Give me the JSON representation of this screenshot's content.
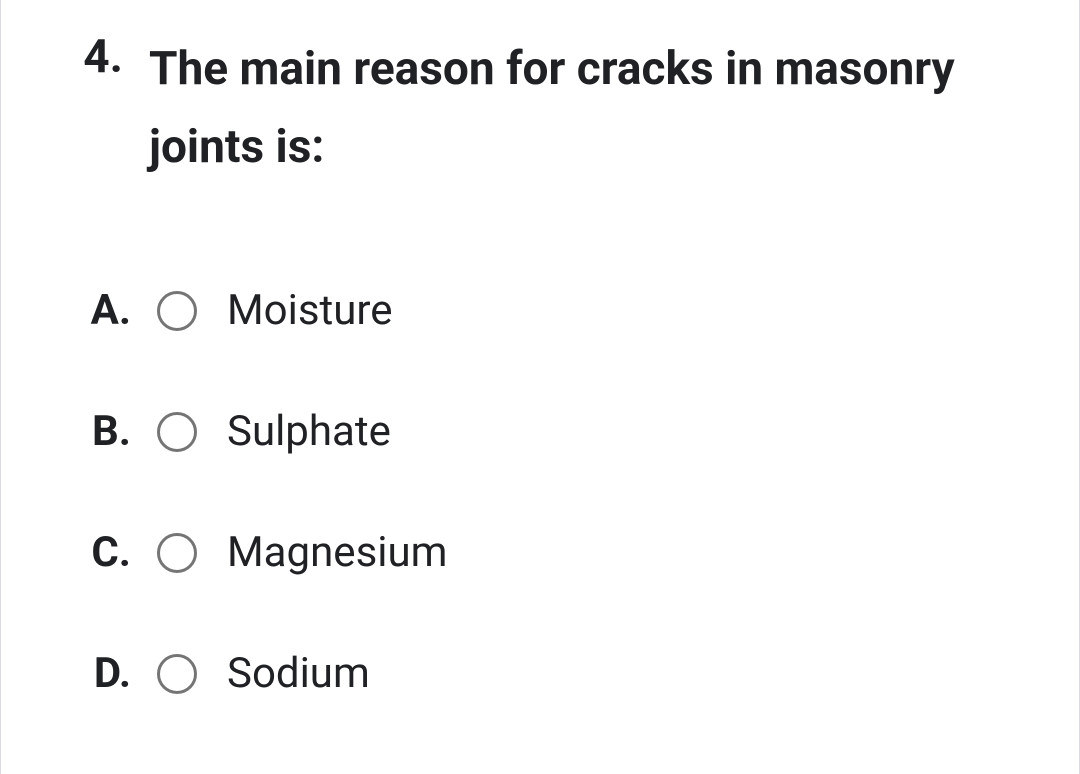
{
  "question": {
    "number": "4.",
    "text": "The main reason for cracks in masonry joints is:"
  },
  "options": [
    {
      "letter": "A.",
      "label": "Moisture"
    },
    {
      "letter": "B.",
      "label": "Sulphate"
    },
    {
      "letter": "C.",
      "label": "Magnesium"
    },
    {
      "letter": "D.",
      "label": "Sodium"
    }
  ],
  "colors": {
    "text": "#202124",
    "radio_border": "#757575",
    "page_border": "#dadce0",
    "background": "#ffffff"
  },
  "typography": {
    "question_fontsize": 46,
    "question_weight": 700,
    "option_letter_fontsize": 42,
    "option_letter_weight": 700,
    "option_label_fontsize": 42,
    "option_label_weight": 400
  }
}
